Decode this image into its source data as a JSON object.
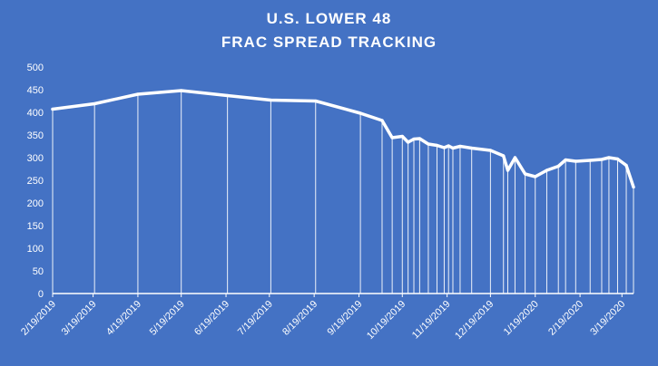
{
  "chart_data": {
    "type": "line",
    "title": "U.S. LOWER 48",
    "subtitle": "FRAC SPREAD TRACKING",
    "xlabel": "",
    "ylabel": "",
    "ylim": [
      0,
      500
    ],
    "y_ticks": [
      0,
      50,
      100,
      150,
      200,
      250,
      300,
      350,
      400,
      450,
      500
    ],
    "x_tick_labels": [
      "2/19/2019",
      "3/19/2019",
      "4/19/2019",
      "5/19/2019",
      "6/19/2019",
      "7/19/2019",
      "8/19/2019",
      "9/19/2019",
      "10/19/2019",
      "11/19/2019",
      "12/19/2019",
      "1/19/2020",
      "2/19/2020",
      "3/19/2020"
    ],
    "x_range": [
      "2019-02-19",
      "2020-03-27"
    ],
    "grid": false,
    "drop_lines": true,
    "line_color": "#ffffff",
    "background_color": "#4472c4",
    "series": [
      {
        "x": [
          "2019-02-19",
          "2019-03-20",
          "2019-04-19",
          "2019-05-19",
          "2019-06-20",
          "2019-07-20",
          "2019-08-20",
          "2019-09-20",
          "2019-10-05",
          "2019-10-12",
          "2019-10-19",
          "2019-10-23",
          "2019-10-27",
          "2019-10-31",
          "2019-11-06",
          "2019-11-12",
          "2019-11-17",
          "2019-11-20",
          "2019-11-23",
          "2019-11-28",
          "2019-12-06",
          "2019-12-19",
          "2019-12-28",
          "2019-12-31",
          "2020-01-05",
          "2020-01-12",
          "2020-01-19",
          "2020-01-27",
          "2020-02-04",
          "2020-02-09",
          "2020-02-16",
          "2020-02-26",
          "2020-03-05",
          "2020-03-10",
          "2020-03-16",
          "2020-03-22",
          "2020-03-27"
        ],
        "values": [
          407,
          419,
          440,
          448,
          437,
          427,
          425,
          398,
          382,
          344,
          347,
          334,
          341,
          342,
          330,
          327,
          322,
          326,
          321,
          325,
          321,
          316,
          304,
          272,
          300,
          264,
          258,
          272,
          281,
          295,
          292,
          294,
          296,
          300,
          297,
          283,
          235
        ]
      }
    ]
  }
}
